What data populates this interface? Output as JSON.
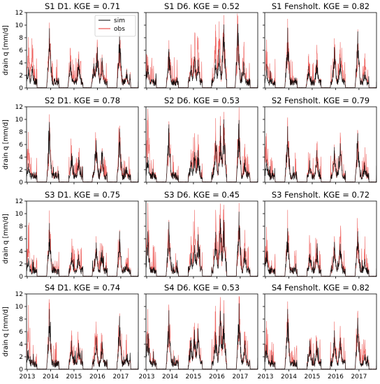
{
  "figure": {
    "ylabel": "drain q [mm/d]",
    "xticks": [
      "2013",
      "2014",
      "2015",
      "2016",
      "2017"
    ],
    "yticks": [
      0,
      2,
      4,
      6,
      8,
      10,
      12
    ],
    "legend": [
      "sim",
      "obs"
    ],
    "colors": {
      "sim": "#000000",
      "obs": "#e8322e"
    }
  },
  "chart_data": [
    {
      "type": "line",
      "row": 0,
      "col": 0,
      "title": "S1 D1. KGE = 0.71",
      "ylim": [
        0,
        12
      ],
      "legend": "top-right",
      "peaks": [
        [
          2013.05,
          8.1,
          3.3
        ],
        [
          2013.2,
          7.9,
          3.0
        ],
        [
          2013.95,
          10.4,
          9.5
        ],
        [
          2014.85,
          4.8,
          4.2
        ],
        [
          2015.2,
          5.1,
          4.6
        ],
        [
          2015.85,
          4.8,
          3.9
        ],
        [
          2016.0,
          7.2,
          6.5
        ],
        [
          2016.2,
          5.3,
          4.8
        ],
        [
          2016.95,
          9.5,
          9.2
        ],
        [
          2017.25,
          3.1,
          2.9
        ]
      ]
    },
    {
      "type": "line",
      "row": 0,
      "col": 1,
      "title": "S1 D6. KGE = 0.52",
      "ylim": [
        0,
        12
      ],
      "legend": "",
      "peaks": [
        [
          2013.05,
          5.0,
          3.6
        ],
        [
          2013.95,
          7.6,
          6.2
        ],
        [
          2014.9,
          6.7,
          3.6
        ],
        [
          2015.05,
          7.2,
          5.0
        ],
        [
          2015.2,
          8.0,
          4.5
        ],
        [
          2015.95,
          10.1,
          4.6
        ],
        [
          2016.1,
          10.6,
          6.2
        ],
        [
          2016.3,
          11.6,
          10.1
        ],
        [
          2016.9,
          11.5,
          10.2
        ],
        [
          2017.15,
          6.6,
          4.0
        ]
      ]
    },
    {
      "type": "line",
      "row": 0,
      "col": 2,
      "title": "S1 Fensholt. KGE = 0.82",
      "ylim": [
        0,
        12
      ],
      "legend": "",
      "peaks": [
        [
          2013.05,
          7.7,
          3.2
        ],
        [
          2013.95,
          11.0,
          9.6
        ],
        [
          2014.85,
          5.4,
          3.5
        ],
        [
          2015.2,
          6.1,
          4.5
        ],
        [
          2015.95,
          7.9,
          6.5
        ],
        [
          2016.2,
          7.3,
          4.8
        ],
        [
          2016.95,
          9.3,
          9.0
        ],
        [
          2017.25,
          5.5,
          2.6
        ]
      ]
    },
    {
      "type": "line",
      "row": 1,
      "col": 0,
      "title": "S2 D1. KGE = 0.78",
      "ylim": [
        0,
        12
      ],
      "legend": "",
      "peaks": [
        [
          2013.05,
          8.0,
          3.0
        ],
        [
          2013.95,
          10.8,
          9.6
        ],
        [
          2014.9,
          4.8,
          4.6
        ],
        [
          2015.2,
          4.8,
          4.0
        ],
        [
          2015.95,
          7.0,
          6.7
        ],
        [
          2016.2,
          5.3,
          5.0
        ],
        [
          2016.95,
          9.0,
          8.5
        ],
        [
          2017.25,
          2.6,
          2.4
        ]
      ]
    },
    {
      "type": "line",
      "row": 1,
      "col": 1,
      "title": "S2 D6. KGE = 0.53",
      "ylim": [
        0,
        12
      ],
      "legend": "",
      "peaks": [
        [
          2013.05,
          11.7,
          4.0
        ],
        [
          2013.95,
          9.7,
          9.2
        ],
        [
          2014.9,
          5.2,
          3.5
        ],
        [
          2015.05,
          7.8,
          4.8
        ],
        [
          2015.2,
          7.6,
          5.1
        ],
        [
          2015.95,
          10.2,
          6.6
        ],
        [
          2016.15,
          10.5,
          9.0
        ],
        [
          2016.3,
          11.2,
          10.0
        ],
        [
          2016.95,
          11.5,
          9.9
        ],
        [
          2017.2,
          6.1,
          3.6
        ]
      ]
    },
    {
      "type": "line",
      "row": 1,
      "col": 2,
      "title": "S2 Fensholt. KGE = 0.79",
      "ylim": [
        0,
        12
      ],
      "legend": "",
      "peaks": [
        [
          2013.05,
          7.8,
          3.6
        ],
        [
          2013.95,
          10.3,
          8.9
        ],
        [
          2014.9,
          4.6,
          3.5
        ],
        [
          2015.2,
          6.2,
          5.1
        ],
        [
          2015.95,
          6.0,
          5.6
        ],
        [
          2016.2,
          7.9,
          6.2
        ],
        [
          2016.95,
          7.9,
          7.8
        ],
        [
          2017.25,
          3.5,
          2.7
        ]
      ]
    },
    {
      "type": "line",
      "row": 2,
      "col": 0,
      "title": "S3 D1. KGE = 0.75",
      "ylim": [
        0,
        12
      ],
      "legend": "",
      "peaks": [
        [
          2013.05,
          8.2,
          2.9
        ],
        [
          2013.95,
          10.5,
          8.5
        ],
        [
          2014.9,
          4.4,
          3.8
        ],
        [
          2015.2,
          4.1,
          3.5
        ],
        [
          2015.95,
          6.4,
          5.4
        ],
        [
          2016.2,
          5.0,
          4.2
        ],
        [
          2016.95,
          7.4,
          7.2
        ],
        [
          2017.25,
          3.0,
          2.0
        ]
      ]
    },
    {
      "type": "line",
      "row": 2,
      "col": 1,
      "title": "S3 D6. KGE = 0.45",
      "ylim": [
        0,
        12
      ],
      "legend": "",
      "peaks": [
        [
          2013.05,
          11.7,
          6.6
        ],
        [
          2013.95,
          9.0,
          8.7
        ],
        [
          2014.9,
          6.4,
          3.7
        ],
        [
          2015.05,
          10.6,
          5.0
        ],
        [
          2015.2,
          7.9,
          6.7
        ],
        [
          2015.95,
          10.6,
          7.1
        ],
        [
          2016.15,
          11.6,
          9.2
        ],
        [
          2016.3,
          11.4,
          9.0
        ],
        [
          2016.95,
          11.7,
          10.3
        ],
        [
          2017.2,
          7.4,
          4.5
        ]
      ]
    },
    {
      "type": "line",
      "row": 2,
      "col": 2,
      "title": "S3 Fensholt. KGE = 0.72",
      "ylim": [
        0,
        12
      ],
      "legend": "",
      "peaks": [
        [
          2013.05,
          7.9,
          3.9
        ],
        [
          2013.95,
          10.6,
          7.7
        ],
        [
          2014.9,
          5.0,
          3.6
        ],
        [
          2015.2,
          5.9,
          4.5
        ],
        [
          2015.95,
          6.4,
          5.5
        ],
        [
          2016.2,
          6.4,
          5.2
        ],
        [
          2016.95,
          7.7,
          7.2
        ],
        [
          2017.25,
          4.1,
          2.8
        ]
      ]
    },
    {
      "type": "line",
      "row": 3,
      "col": 0,
      "title": "S4 D1. KGE = 0.74",
      "ylim": [
        0,
        12
      ],
      "legend": "",
      "peaks": [
        [
          2013.05,
          7.7,
          3.1
        ],
        [
          2013.95,
          10.5,
          9.6
        ],
        [
          2014.9,
          4.9,
          4.6
        ],
        [
          2015.2,
          4.7,
          4.2
        ],
        [
          2015.95,
          7.6,
          5.1
        ],
        [
          2016.2,
          5.5,
          4.4
        ],
        [
          2016.95,
          8.9,
          8.5
        ],
        [
          2017.25,
          2.9,
          2.3
        ]
      ]
    },
    {
      "type": "line",
      "row": 3,
      "col": 1,
      "title": "S4 D6. KGE = 0.53",
      "ylim": [
        0,
        12
      ],
      "legend": "",
      "peaks": [
        [
          2013.05,
          9.6,
          5.6
        ],
        [
          2013.95,
          9.7,
          9.4
        ],
        [
          2014.9,
          5.1,
          4.6
        ],
        [
          2015.05,
          7.4,
          6.3
        ],
        [
          2015.2,
          7.3,
          6.5
        ],
        [
          2015.95,
          10.1,
          5.9
        ],
        [
          2016.15,
          11.5,
          9.3
        ],
        [
          2016.3,
          11.0,
          8.9
        ],
        [
          2016.95,
          11.7,
          10.5
        ],
        [
          2017.2,
          6.0,
          4.6
        ]
      ]
    },
    {
      "type": "line",
      "row": 3,
      "col": 2,
      "title": "S4 Fensholt. KGE = 0.82",
      "ylim": [
        0,
        12
      ],
      "legend": "",
      "peaks": [
        [
          2013.05,
          7.7,
          3.9
        ],
        [
          2013.95,
          10.8,
          9.6
        ],
        [
          2014.9,
          4.9,
          4.6
        ],
        [
          2015.2,
          5.1,
          4.5
        ],
        [
          2015.95,
          7.6,
          6.2
        ],
        [
          2016.2,
          6.9,
          5.0
        ],
        [
          2016.95,
          9.3,
          8.2
        ],
        [
          2017.25,
          4.7,
          2.4
        ]
      ]
    }
  ]
}
